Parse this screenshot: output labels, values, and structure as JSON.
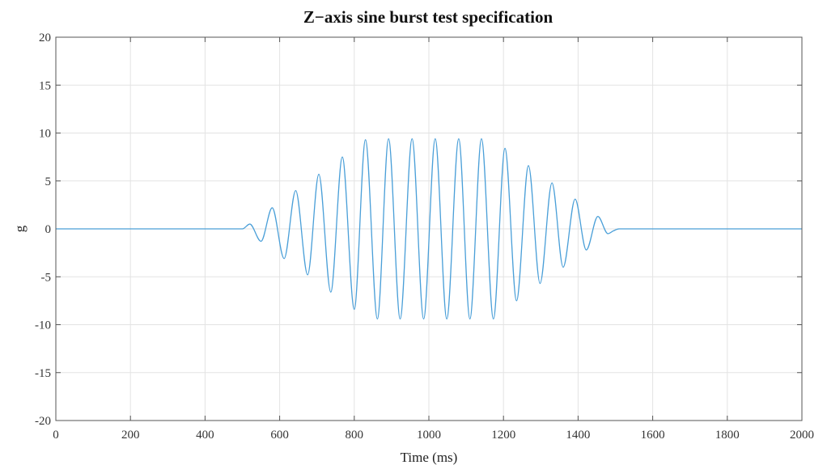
{
  "chart_data": {
    "type": "line",
    "title": "Z−axis sine burst test specification",
    "xlabel": "Time (ms)",
    "ylabel": "g",
    "xlim": [
      0,
      2000
    ],
    "ylim": [
      -20,
      20
    ],
    "x_ticks": [
      "0",
      "200",
      "400",
      "600",
      "800",
      "1000",
      "1200",
      "1400",
      "1600",
      "1800",
      "2000"
    ],
    "y_ticks": [
      "20",
      "15",
      "10",
      "5",
      "0",
      "-5",
      "-10",
      "-15",
      "-20"
    ],
    "grid": true,
    "series": [
      {
        "color": "#4a9fd8",
        "x": [
          0,
          500,
          520,
          550,
          580,
          612,
          643,
          675,
          705,
          737,
          768,
          800,
          830,
          862,
          892,
          923,
          955,
          986,
          1017,
          1048,
          1080,
          1110,
          1141,
          1173,
          1204,
          1235,
          1267,
          1298,
          1330,
          1360,
          1392,
          1422,
          1453,
          1480,
          1495,
          1510,
          2000
        ],
        "y": [
          0,
          0,
          0.5,
          -1.3,
          2.2,
          -3.1,
          4.0,
          -4.8,
          5.7,
          -6.6,
          7.5,
          -8.4,
          9.3,
          -9.4,
          9.4,
          -9.4,
          9.4,
          -9.4,
          9.4,
          -9.4,
          9.4,
          -9.4,
          9.4,
          -9.4,
          8.4,
          -7.5,
          6.6,
          -5.7,
          4.8,
          -4.0,
          3.1,
          -2.2,
          1.3,
          -0.5,
          -0.2,
          0,
          0
        ]
      }
    ]
  }
}
